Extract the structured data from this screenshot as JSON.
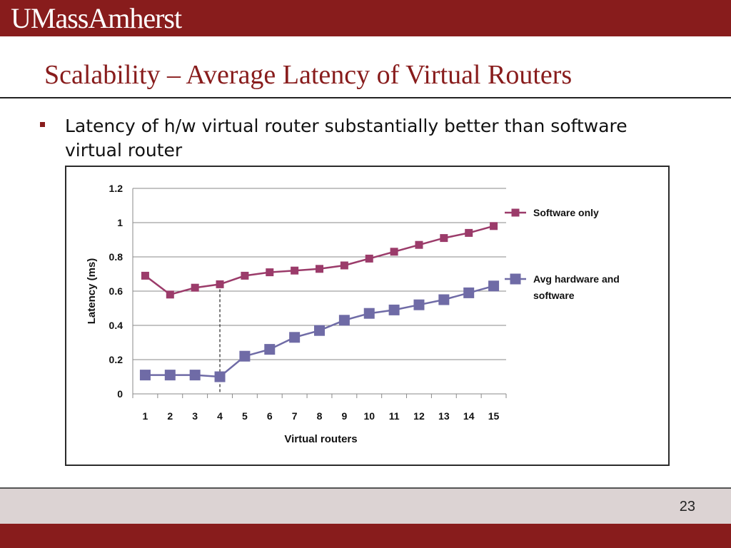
{
  "header": {
    "logo_text": "UMassAmherst"
  },
  "slide": {
    "title": "Scalability – Average Latency of Virtual Routers",
    "bullet": "Latency of h/w virtual router substantially better than software virtual router",
    "page_number": "23"
  },
  "colors": {
    "brand": "#881c1c",
    "software_series": "#9b3b6a",
    "hardware_series": "#6f6ba6"
  },
  "chart_data": {
    "type": "line",
    "title": "",
    "xlabel": "Virtual routers",
    "ylabel": "Latency (ms)",
    "categories": [
      "1",
      "2",
      "3",
      "4",
      "5",
      "6",
      "7",
      "8",
      "9",
      "10",
      "11",
      "12",
      "13",
      "14",
      "15"
    ],
    "ylim": [
      0,
      1.2
    ],
    "yticks": [
      "0",
      "0.2",
      "0.4",
      "0.6",
      "0.8",
      "1",
      "1.2"
    ],
    "grid": true,
    "legend": "right",
    "annotation": "dashed vertical line at 4 virtual routers",
    "series": [
      {
        "name": "Software only",
        "values": [
          0.69,
          0.58,
          0.62,
          0.64,
          0.69,
          0.71,
          0.72,
          0.73,
          0.75,
          0.79,
          0.83,
          0.87,
          0.91,
          0.94,
          0.98
        ]
      },
      {
        "name": "Avg hardware and software",
        "values": [
          0.11,
          0.11,
          0.11,
          0.1,
          0.22,
          0.26,
          0.33,
          0.37,
          0.43,
          0.47,
          0.49,
          0.52,
          0.55,
          0.59,
          0.63
        ]
      }
    ]
  }
}
